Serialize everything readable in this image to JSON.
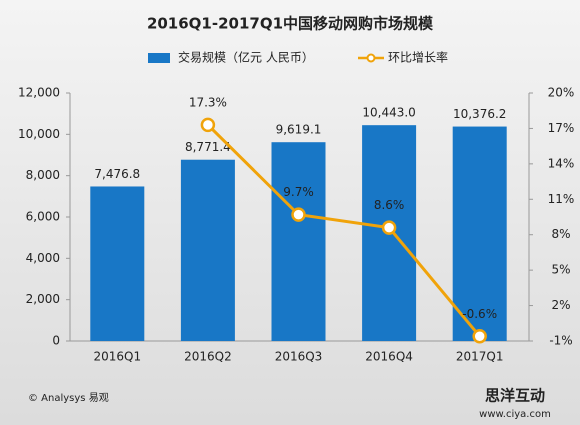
{
  "chart_data": {
    "type": "bar_line",
    "title": "2016Q1-2017Q1中国移动网购市场规模",
    "categories": [
      "2016Q1",
      "2016Q2",
      "2016Q3",
      "2016Q4",
      "2017Q1"
    ],
    "series": [
      {
        "name": "交易规模（亿元 人民币）",
        "type": "bar",
        "color": "#1877c6",
        "values": [
          7476.8,
          8771.4,
          9619.1,
          10443.0,
          10376.2
        ],
        "value_labels": [
          "7,476.8",
          "8,771.4",
          "9,619.1",
          "10,443.0",
          "10,376.2"
        ]
      },
      {
        "name": "环比增长率",
        "type": "line",
        "axis": "y2",
        "color": "#f0a30a",
        "values": [
          null,
          17.3,
          9.7,
          8.6,
          -0.6
        ],
        "value_labels": [
          null,
          "17.3%",
          "9.7%",
          "8.6%",
          "-0.6%"
        ]
      }
    ],
    "ylim": [
      0,
      12000
    ],
    "yticks": [
      0,
      {
        "value": 2000,
        "label": "2,000"
      },
      {
        "value": 4000,
        "label": "4,000"
      },
      {
        "value": 6000,
        "label": "6,000"
      },
      {
        "value": 8000,
        "label": "8,000"
      },
      {
        "value": 10000,
        "label": "10,000"
      },
      {
        "value": 12000,
        "label": "12,000"
      }
    ],
    "y2lim": [
      -1,
      20
    ],
    "y2ticks": [
      {
        "value": -1,
        "label": "-1%"
      },
      {
        "value": 2,
        "label": "2%"
      },
      {
        "value": 5,
        "label": "5%"
      },
      {
        "value": 8,
        "label": "8%"
      },
      {
        "value": 11,
        "label": "11%"
      },
      {
        "value": 14,
        "label": "14%"
      },
      {
        "value": 17,
        "label": "17%"
      },
      {
        "value": 20,
        "label": "20%"
      }
    ],
    "legend": "top",
    "source": "© Analysys 易观",
    "watermark": [
      "思洋互动",
      "www.ciya.com"
    ]
  }
}
